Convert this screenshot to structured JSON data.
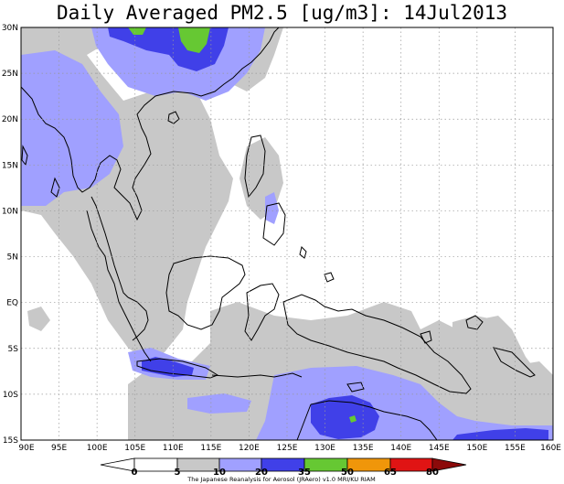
{
  "title": "Daily Averaged PM2.5 [ug/m3]: 14Jul2013",
  "colors": {
    "band_5_10": "#c8c8c8",
    "band_10_20": "#a0a0ff",
    "band_20_35": "#4040e8",
    "band_35_50": "#66c833",
    "band_50_65": "#f0960a",
    "band_65_80": "#e01414",
    "band_above_80": "#8c0a0a",
    "coast": "#000000",
    "grid": "#999999"
  },
  "axes": {
    "lat_labels": [
      "30N",
      "25N",
      "20N",
      "15N",
      "10N",
      "5N",
      "EQ",
      "5S",
      "10S",
      "15S"
    ],
    "lon_labels": [
      "90E",
      "95E",
      "100E",
      "105E",
      "110E",
      "115E",
      "120E",
      "125E",
      "130E",
      "135E",
      "140E",
      "145E",
      "150E",
      "155E",
      "160E"
    ]
  },
  "colorbar": {
    "levels": [
      "0",
      "5",
      "10",
      "20",
      "35",
      "50",
      "65",
      "80"
    ]
  },
  "credit": "The Japanese Reanalysis for Aerosol (JRAero) v1.0 MRI/KU RIAM"
}
